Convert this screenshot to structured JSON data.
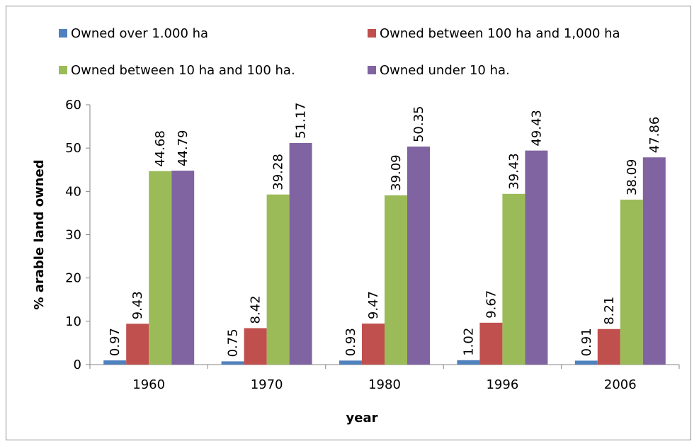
{
  "chart_data": {
    "type": "bar",
    "categories": [
      "1960",
      "1970",
      "1980",
      "1996",
      "2006"
    ],
    "series": [
      {
        "name": "Owned over 1.000 ha",
        "color": "#4F81BD",
        "values": [
          0.97,
          0.75,
          0.93,
          1.02,
          0.91
        ]
      },
      {
        "name": "Owned between 100 ha and 1,000 ha",
        "color": "#C0504D",
        "values": [
          9.43,
          8.42,
          9.47,
          9.67,
          8.21
        ]
      },
      {
        "name": "Owned between 10 ha and 100 ha.",
        "color": "#9BBB59",
        "values": [
          44.68,
          39.28,
          39.09,
          39.43,
          38.09
        ]
      },
      {
        "name": "Owned under 10 ha.",
        "color": "#8064A2",
        "values": [
          44.79,
          51.17,
          50.35,
          49.43,
          47.86
        ]
      }
    ],
    "data_labels": [
      [
        "0.97",
        "0.75",
        "0.93",
        "1.02",
        "0.91"
      ],
      [
        "9.43",
        "8.42",
        "9.47",
        "9.67",
        "8.21"
      ],
      [
        "44.68",
        "39.28",
        "39.09",
        "39.43",
        "38.09"
      ],
      [
        "44.79",
        "51.17",
        "50.35",
        "49.43",
        "47.86"
      ]
    ],
    "title": "",
    "xlabel": "year",
    "ylabel": "% arable land owned",
    "ylim": [
      0,
      60
    ],
    "yticks": [
      "0",
      "10",
      "20",
      "30",
      "40",
      "50",
      "60"
    ],
    "grid": false,
    "legend": "top"
  }
}
